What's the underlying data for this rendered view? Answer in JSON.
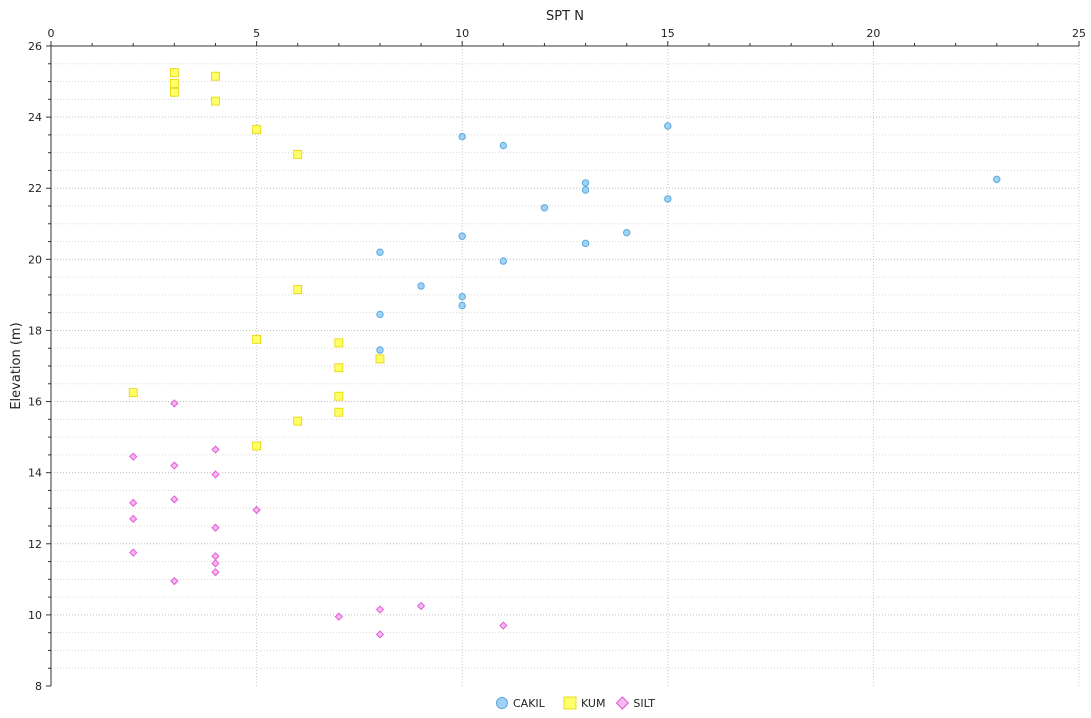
{
  "chart_data": {
    "type": "scatter",
    "xlabel": "SPT N",
    "ylabel": "Elevation (m)",
    "xlim": [
      0,
      25
    ],
    "ylim": [
      8,
      26
    ],
    "x_ticks": [
      0,
      5,
      10,
      15,
      20,
      25
    ],
    "y_ticks": [
      8,
      10,
      12,
      14,
      16,
      18,
      20,
      22,
      24,
      26
    ],
    "x_axis_position": "top",
    "grid": true,
    "legend_position": "bottom-center",
    "series": [
      {
        "name": "CAKIL",
        "marker": "circle",
        "color": "#9fd3f5",
        "stroke": "#5aa9de",
        "points": [
          [
            15,
            23.75
          ],
          [
            10,
            23.45
          ],
          [
            11,
            23.2
          ],
          [
            13,
            22.15
          ],
          [
            13,
            21.95
          ],
          [
            23,
            22.25
          ],
          [
            15,
            21.7
          ],
          [
            12,
            21.45
          ],
          [
            14,
            20.75
          ],
          [
            10,
            20.65
          ],
          [
            13,
            20.45
          ],
          [
            8,
            20.2
          ],
          [
            11,
            19.95
          ],
          [
            9,
            19.25
          ],
          [
            10,
            18.95
          ],
          [
            10,
            18.7
          ],
          [
            8,
            18.45
          ],
          [
            8,
            17.45
          ]
        ]
      },
      {
        "name": "KUM",
        "marker": "square",
        "color": "#ffff66",
        "stroke": "#e6d200",
        "points": [
          [
            3,
            25.25
          ],
          [
            4,
            25.15
          ],
          [
            3,
            24.95
          ],
          [
            3,
            24.7
          ],
          [
            4,
            24.45
          ],
          [
            5,
            23.65
          ],
          [
            6,
            22.95
          ],
          [
            6,
            19.15
          ],
          [
            5,
            17.75
          ],
          [
            7,
            17.65
          ],
          [
            8,
            17.2
          ],
          [
            7,
            16.95
          ],
          [
            2,
            16.25
          ],
          [
            7,
            16.15
          ],
          [
            7,
            15.7
          ],
          [
            6,
            15.45
          ],
          [
            5,
            14.75
          ]
        ]
      },
      {
        "name": "SILT",
        "marker": "diamond",
        "color": "#f7b8f0",
        "stroke": "#e05ad6",
        "points": [
          [
            3,
            15.95
          ],
          [
            4,
            14.65
          ],
          [
            2,
            14.45
          ],
          [
            3,
            14.2
          ],
          [
            4,
            13.95
          ],
          [
            3,
            13.25
          ],
          [
            2,
            13.15
          ],
          [
            5,
            12.95
          ],
          [
            2,
            12.7
          ],
          [
            4,
            12.45
          ],
          [
            2,
            11.75
          ],
          [
            4,
            11.65
          ],
          [
            4,
            11.45
          ],
          [
            4,
            11.2
          ],
          [
            3,
            10.95
          ],
          [
            9,
            10.25
          ],
          [
            8,
            10.15
          ],
          [
            7,
            9.95
          ],
          [
            11,
            9.7
          ],
          [
            8,
            9.45
          ]
        ]
      }
    ]
  }
}
